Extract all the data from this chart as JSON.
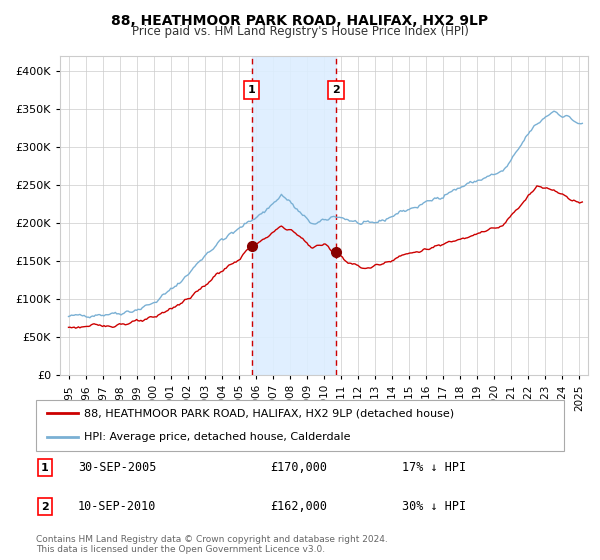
{
  "title": "88, HEATHMOOR PARK ROAD, HALIFAX, HX2 9LP",
  "subtitle": "Price paid vs. HM Land Registry's House Price Index (HPI)",
  "legend_property": "88, HEATHMOOR PARK ROAD, HALIFAX, HX2 9LP (detached house)",
  "legend_hpi": "HPI: Average price, detached house, Calderdale",
  "sale1_date": "30-SEP-2005",
  "sale1_price": "£170,000",
  "sale1_note": "17% ↓ HPI",
  "sale1_year": 2005.75,
  "sale1_value": 170000,
  "sale2_date": "10-SEP-2010",
  "sale2_price": "£162,000",
  "sale2_note": "30% ↓ HPI",
  "sale2_year": 2010.7,
  "sale2_value": 162000,
  "footer": "Contains HM Land Registry data © Crown copyright and database right 2024.\nThis data is licensed under the Open Government Licence v3.0.",
  "property_color": "#cc0000",
  "hpi_color": "#7ab0d4",
  "marker_color": "#880000",
  "shading_color": "#ddeeff",
  "vline_color": "#cc0000",
  "grid_color": "#cccccc",
  "background_color": "#ffffff",
  "ylim": [
    0,
    420000
  ],
  "yticks": [
    0,
    50000,
    100000,
    150000,
    200000,
    250000,
    300000,
    350000,
    400000
  ],
  "xlim_start": 1994.5,
  "xlim_end": 2025.5
}
